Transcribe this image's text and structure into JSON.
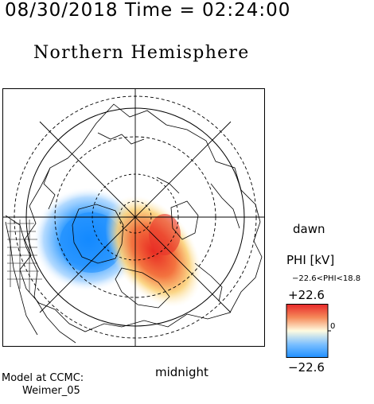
{
  "header": {
    "timestamp": "08/30/2018 Time = 02:24:00"
  },
  "plot": {
    "title": "Northern Hemisphere",
    "dawn_label": "dawn",
    "midnight_label": "midnight"
  },
  "colorbar": {
    "title": "PHI [kV]",
    "range_text": "−22.6<PHI<18.8",
    "max_label": "+22.6",
    "zero_label": "0",
    "min_label": "−22.6",
    "colors": {
      "positive": "#e8282a",
      "neutral": "#fffbe0",
      "negative": "#1f8fff"
    }
  },
  "credit": {
    "line1": "Model at CCMC:",
    "line2": "Weimer_05"
  },
  "map_data": {
    "projection": "north-polar stereographic",
    "potential_cells": [
      {
        "sign": "negative",
        "peak_kv": -22.6
      },
      {
        "sign": "positive",
        "peak_kv": 18.8
      }
    ]
  }
}
